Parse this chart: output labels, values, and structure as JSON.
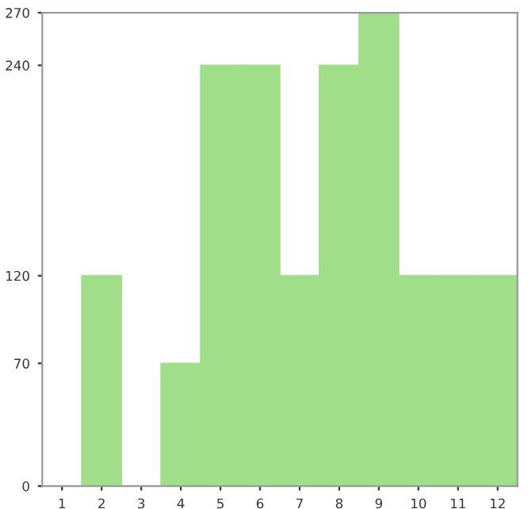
{
  "chart_data": {
    "type": "bar",
    "categories": [
      "1",
      "2",
      "3",
      "4",
      "5",
      "6",
      "7",
      "8",
      "9",
      "10",
      "11",
      "12"
    ],
    "values": [
      0,
      120,
      0,
      70,
      240,
      240,
      120,
      240,
      270,
      120,
      120,
      120
    ],
    "color": "#a0de8a",
    "ylim": [
      0,
      270
    ],
    "yticks": [
      0,
      70,
      120,
      240,
      270
    ],
    "grid": false
  }
}
